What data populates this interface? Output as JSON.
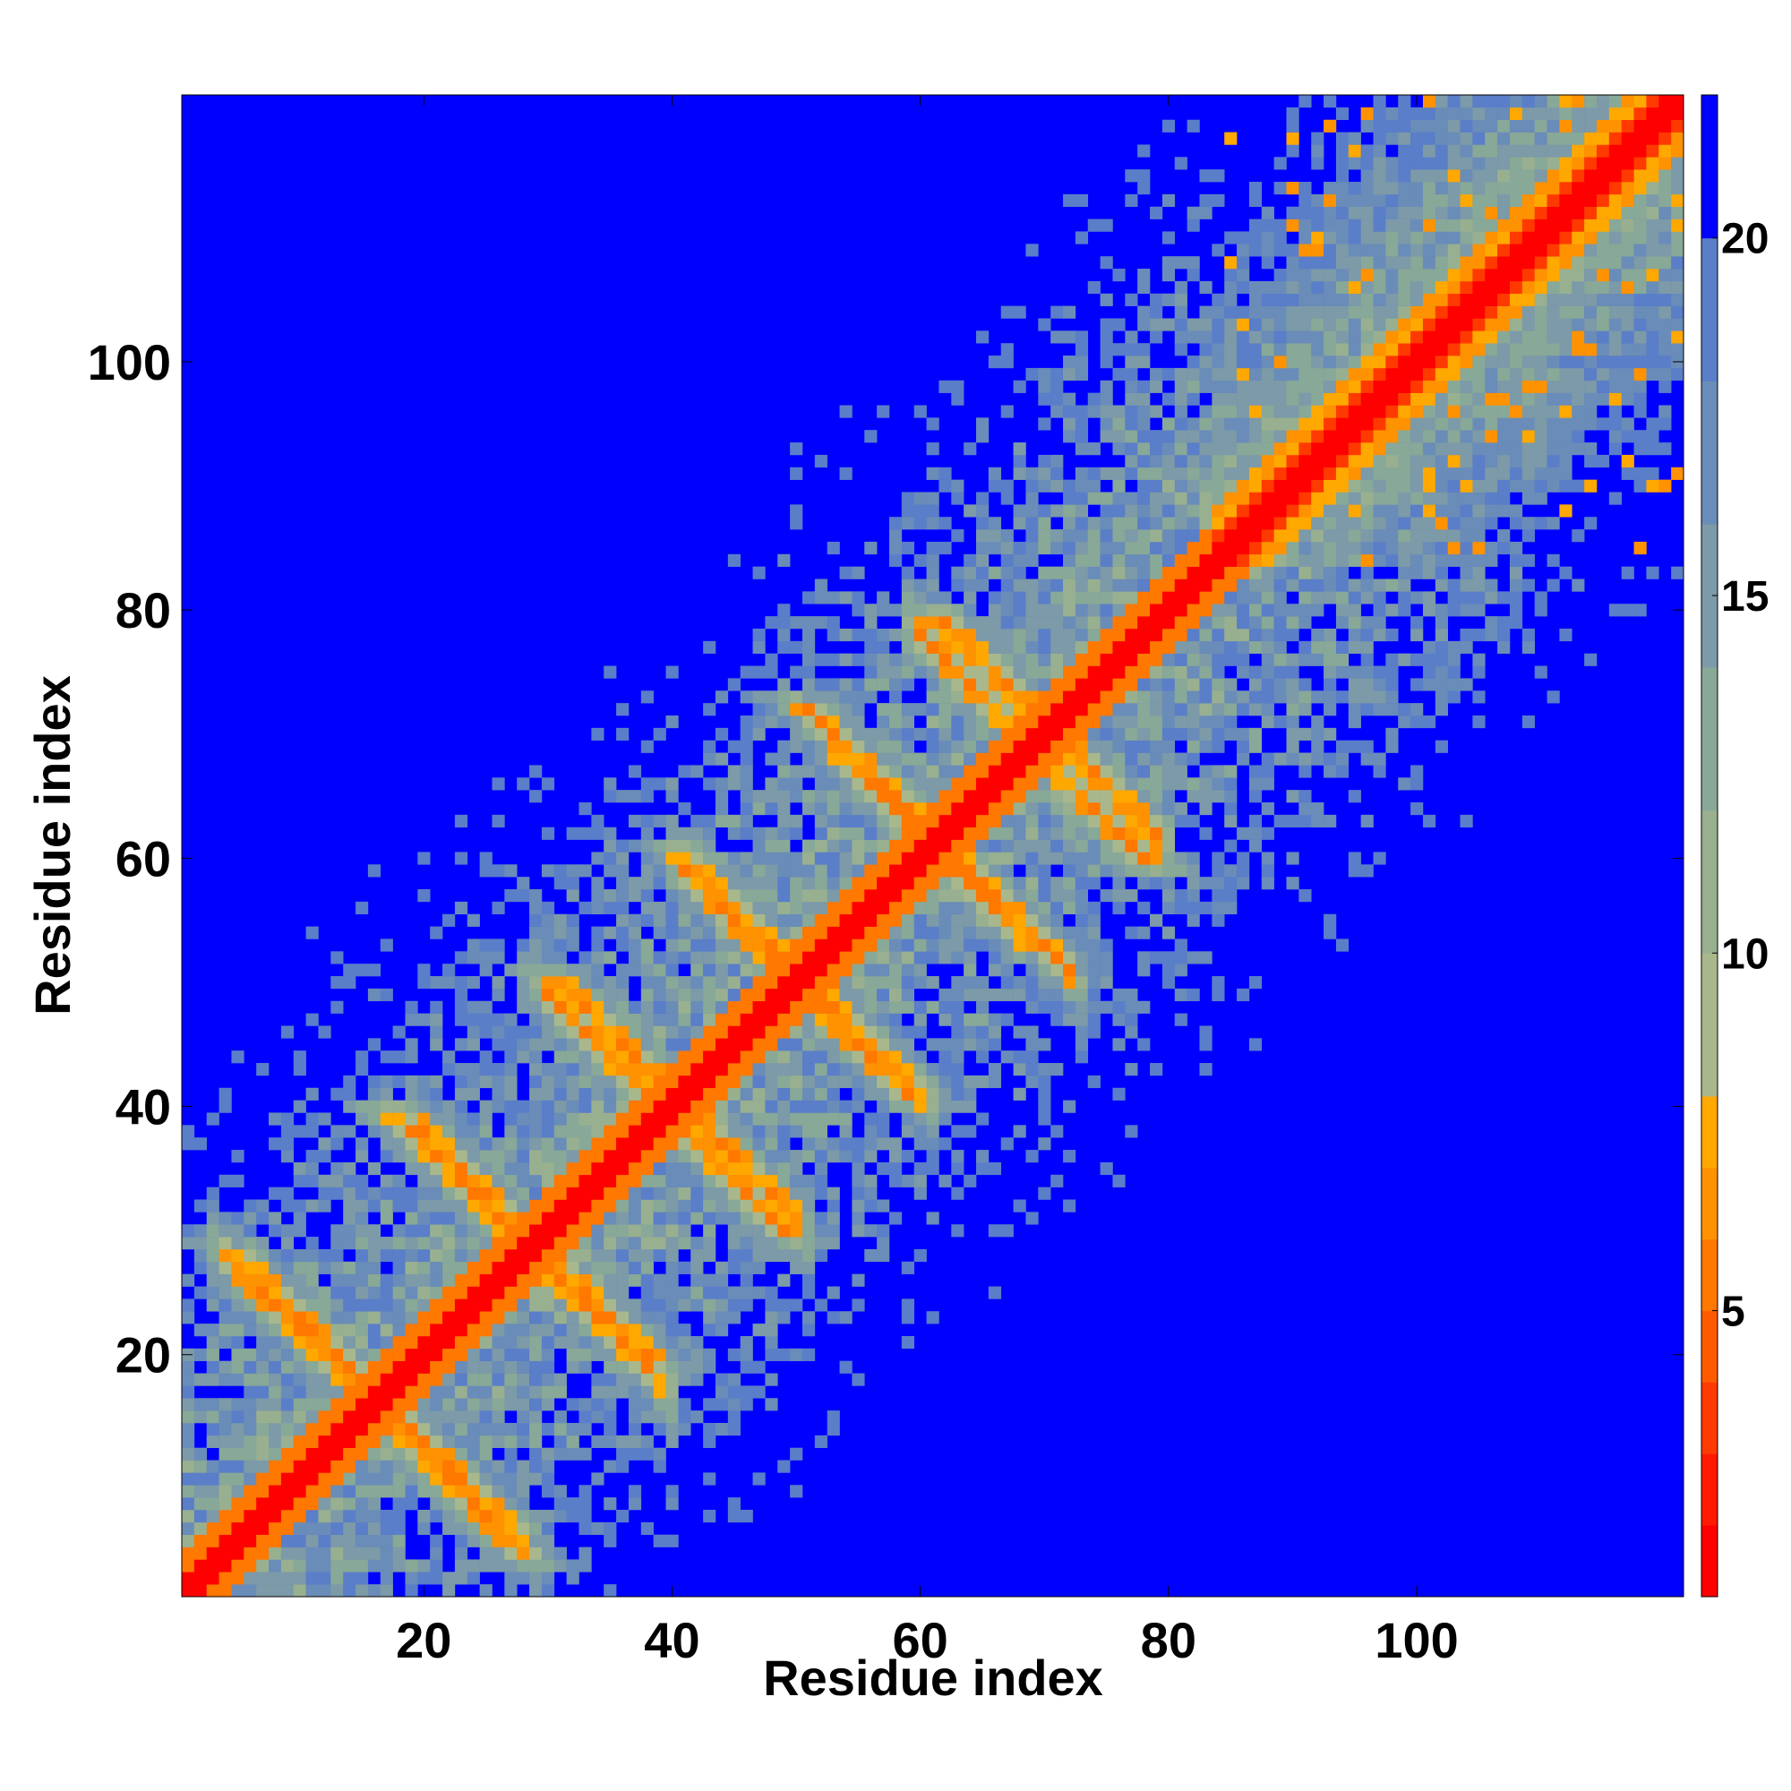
{
  "chart_data": {
    "type": "heatmap",
    "title": "",
    "xlabel": "Residue index",
    "ylabel": "Residue index",
    "n_residues": 121,
    "xlim": [
      1,
      121
    ],
    "ylim": [
      1,
      121
    ],
    "x_ticks": [
      20,
      40,
      60,
      80,
      100
    ],
    "y_ticks": [
      20,
      40,
      60,
      80,
      100
    ],
    "colorbar": {
      "range": [
        1,
        22
      ],
      "ticks": [
        5,
        10,
        15,
        20
      ],
      "levels": [
        {
          "max": 2,
          "color": "#ff0000"
        },
        {
          "max": 3,
          "color": "#ff1a00"
        },
        {
          "max": 4,
          "color": "#ff3a00"
        },
        {
          "max": 5,
          "color": "#ff5a00"
        },
        {
          "max": 6,
          "color": "#ff7800"
        },
        {
          "max": 7,
          "color": "#ff9200"
        },
        {
          "max": 8,
          "color": "#ffa800"
        },
        {
          "max": 10,
          "color": "#a8b88c"
        },
        {
          "max": 12,
          "color": "#98b090"
        },
        {
          "max": 14,
          "color": "#88a898"
        },
        {
          "max": 16,
          "color": "#7c9aa8"
        },
        {
          "max": 18,
          "color": "#6a8cb8"
        },
        {
          "max": 20,
          "color": "#5a7ec8"
        },
        {
          "max": 22,
          "color": "#0000ff"
        }
      ]
    },
    "features": {
      "diagonal": "residue i vs i, distance ~0-4",
      "antiparallel_strands": [
        {
          "i0": 4,
          "j0": 28,
          "len": 10
        },
        {
          "i0": 16,
          "j0": 17,
          "len": 12
        },
        {
          "i0": 20,
          "j0": 38,
          "len": 9
        },
        {
          "i0": 30,
          "j0": 27,
          "len": 9
        },
        {
          "i0": 30,
          "j0": 49,
          "len": 10
        },
        {
          "i0": 41,
          "j0": 40,
          "len": 9
        },
        {
          "i0": 41,
          "j0": 59,
          "len": 9
        },
        {
          "i0": 51,
          "j0": 50,
          "len": 9
        },
        {
          "i0": 53,
          "j0": 69,
          "len": 10
        },
        {
          "i0": 62,
          "j0": 61,
          "len": 10
        },
        {
          "i0": 60,
          "j0": 78,
          "len": 10
        },
        {
          "i0": 70,
          "j0": 71,
          "len": 9
        }
      ],
      "helix_region": [
        84,
        121
      ]
    }
  }
}
